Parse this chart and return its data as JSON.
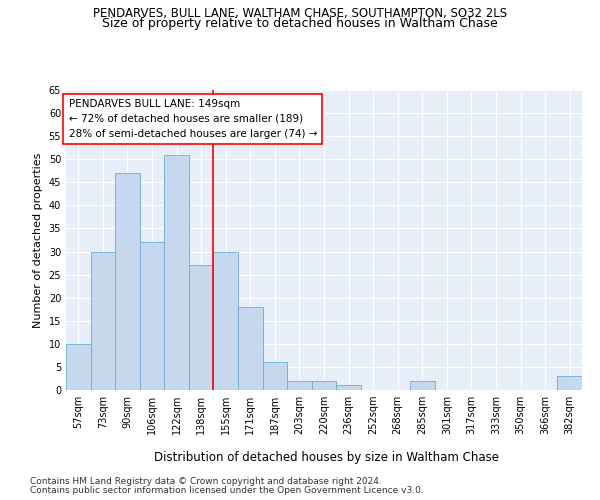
{
  "title1": "PENDARVES, BULL LANE, WALTHAM CHASE, SOUTHAMPTON, SO32 2LS",
  "title2": "Size of property relative to detached houses in Waltham Chase",
  "xlabel": "Distribution of detached houses by size in Waltham Chase",
  "ylabel": "Number of detached properties",
  "categories": [
    "57sqm",
    "73sqm",
    "90sqm",
    "106sqm",
    "122sqm",
    "138sqm",
    "155sqm",
    "171sqm",
    "187sqm",
    "203sqm",
    "220sqm",
    "236sqm",
    "252sqm",
    "268sqm",
    "285sqm",
    "301sqm",
    "317sqm",
    "333sqm",
    "350sqm",
    "366sqm",
    "382sqm"
  ],
  "values": [
    10,
    30,
    47,
    32,
    51,
    27,
    30,
    18,
    6,
    2,
    2,
    1,
    0,
    0,
    2,
    0,
    0,
    0,
    0,
    0,
    3
  ],
  "bar_color": "#c5d8ed",
  "bar_edge_color": "#6aaed6",
  "background_color": "#e8eef7",
  "red_line_index": 5.5,
  "annotation_line1": "PENDARVES BULL LANE: 149sqm",
  "annotation_line2": "← 72% of detached houses are smaller (189)",
  "annotation_line3": "28% of semi-detached houses are larger (74) →",
  "annotation_box_color": "white",
  "annotation_box_edge": "red",
  "ylim": [
    0,
    65
  ],
  "yticks": [
    0,
    5,
    10,
    15,
    20,
    25,
    30,
    35,
    40,
    45,
    50,
    55,
    60,
    65
  ],
  "footer1": "Contains HM Land Registry data © Crown copyright and database right 2024.",
  "footer2": "Contains public sector information licensed under the Open Government Licence v3.0.",
  "title1_fontsize": 8.5,
  "title2_fontsize": 9,
  "xlabel_fontsize": 8.5,
  "ylabel_fontsize": 8,
  "tick_fontsize": 7,
  "annotation_fontsize": 7.5,
  "footer_fontsize": 6.5
}
